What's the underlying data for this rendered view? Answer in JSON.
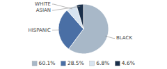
{
  "chart_data": {
    "type": "pie",
    "categories": [
      "BLACK",
      "HISPANIC",
      "WHITE",
      "ASIAN"
    ],
    "values": [
      60.1,
      28.5,
      6.8,
      4.6
    ],
    "value_labels": [
      "60.1%",
      "28.5%",
      "6.8%",
      "4.6%"
    ],
    "colors": [
      "#a8b8c8",
      "#4a6fa5",
      "#d8e4f0",
      "#1a2f4a"
    ],
    "legend": "bottom"
  }
}
